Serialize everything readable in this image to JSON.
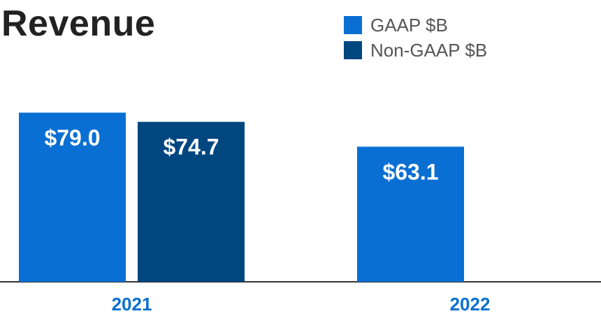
{
  "title": "Revenue",
  "legend": [
    {
      "label": "GAAP $B",
      "color": "#0a6fd3"
    },
    {
      "label": "Non-GAAP $B",
      "color": "#00467f"
    }
  ],
  "colors": {
    "gaap": "#0a6fd3",
    "non_gaap": "#00467f",
    "axis": "#333333",
    "tick_text": "#0a6fd3"
  },
  "chart_data": {
    "type": "bar",
    "title": "Revenue",
    "categories": [
      "2021",
      "2022"
    ],
    "series": [
      {
        "name": "GAAP $B",
        "values": [
          79.0,
          63.1
        ],
        "labels": [
          "$79.0",
          "$63.1"
        ]
      },
      {
        "name": "Non-GAAP $B",
        "values": [
          74.7,
          null
        ],
        "labels": [
          "$74.7",
          ""
        ]
      }
    ],
    "xlabel": "",
    "ylabel": "",
    "grid": false,
    "legend_position": "top-right"
  }
}
